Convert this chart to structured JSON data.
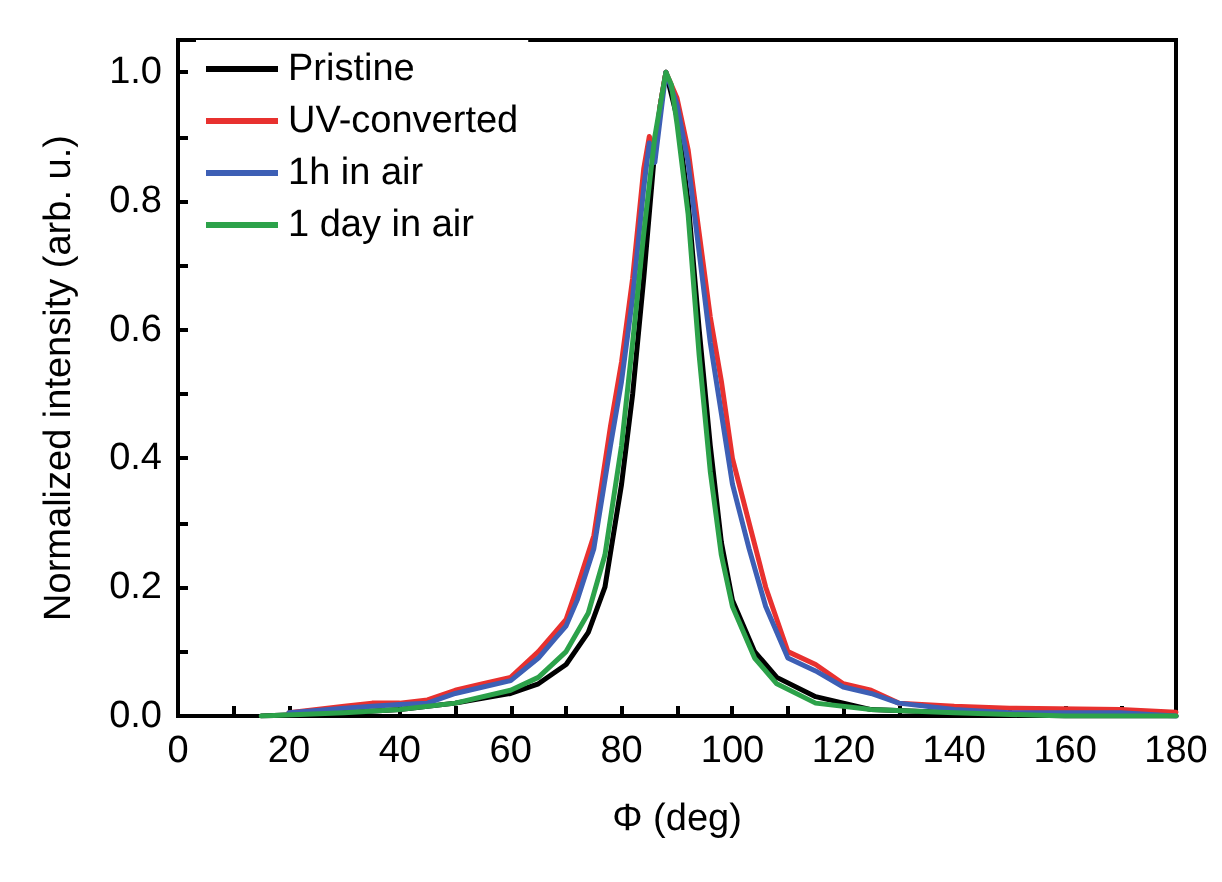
{
  "chart_data": {
    "type": "line",
    "xlabel": "Φ (deg)",
    "ylabel": "Normalized intensity (arb. u.)",
    "xlim": [
      0,
      180
    ],
    "ylim": [
      0,
      1.05
    ],
    "xticks": [
      0,
      {
        "value": 10,
        "label": null
      },
      20,
      {
        "value": 30,
        "label": null
      },
      40,
      {
        "value": 50,
        "label": null
      },
      60,
      {
        "value": 70,
        "label": null
      },
      80,
      {
        "value": 90,
        "label": null
      },
      100,
      {
        "value": 110,
        "label": null
      },
      120,
      {
        "value": 130,
        "label": null
      },
      140,
      {
        "value": 150,
        "label": null
      },
      160,
      {
        "value": 170,
        "label": null
      },
      180
    ],
    "yticks": [
      {
        "value": 0,
        "label": "0.0"
      },
      {
        "value": 0.1,
        "label": null
      },
      {
        "value": 0.2,
        "label": "0.2"
      },
      {
        "value": 0.3,
        "label": null
      },
      {
        "value": 0.4,
        "label": "0.4"
      },
      {
        "value": 0.5,
        "label": null
      },
      {
        "value": 0.6,
        "label": "0.6"
      },
      {
        "value": 0.7,
        "label": null
      },
      {
        "value": 0.8,
        "label": "0.8"
      },
      {
        "value": 0.9,
        "label": null
      },
      {
        "value": 1,
        "label": "1.0"
      }
    ],
    "grid": false,
    "legend": "top left",
    "marker": "none",
    "line_style": "solid",
    "series": [
      {
        "name": "Pristine",
        "color": "#000000",
        "x": [
          15,
          30,
          40,
          50,
          60,
          65,
          70,
          74,
          77,
          80,
          82,
          84,
          86,
          87,
          88,
          90,
          92,
          94,
          96,
          98,
          100,
          104,
          108,
          115,
          125,
          140,
          160,
          180
        ],
        "values": [
          0,
          0.005,
          0.01,
          0.02,
          0.035,
          0.05,
          0.08,
          0.13,
          0.2,
          0.36,
          0.5,
          0.68,
          0.88,
          0.95,
          1.0,
          0.93,
          0.8,
          0.6,
          0.42,
          0.27,
          0.18,
          0.1,
          0.06,
          0.03,
          0.01,
          0.005,
          0,
          0
        ]
      },
      {
        "name": "UV-converted",
        "color": "#e8312f",
        "x": [
          20,
          30,
          35,
          40,
          45,
          50,
          55,
          60,
          65,
          68,
          70,
          72,
          75,
          78,
          80,
          82,
          84,
          85,
          86,
          87,
          88,
          90,
          92,
          94,
          96,
          98,
          100,
          103,
          106,
          110,
          115,
          120,
          125,
          130,
          140,
          150,
          170,
          180
        ],
        "values": [
          0.005,
          0.015,
          0.02,
          0.02,
          0.025,
          0.04,
          0.05,
          0.06,
          0.1,
          0.13,
          0.15,
          0.2,
          0.28,
          0.45,
          0.55,
          0.68,
          0.85,
          0.9,
          0.88,
          0.95,
          1.0,
          0.96,
          0.88,
          0.75,
          0.62,
          0.52,
          0.4,
          0.3,
          0.2,
          0.1,
          0.08,
          0.05,
          0.04,
          0.02,
          0.015,
          0.012,
          0.01,
          0.006
        ]
      },
      {
        "name": "1h in air",
        "color": "#3d5fb5",
        "x": [
          20,
          30,
          35,
          40,
          45,
          50,
          55,
          60,
          65,
          68,
          70,
          72,
          75,
          78,
          80,
          82,
          84,
          85,
          86,
          87,
          88,
          90,
          92,
          94,
          96,
          98,
          100,
          103,
          106,
          110,
          115,
          120,
          125,
          130,
          140,
          150,
          170,
          180
        ],
        "values": [
          0.005,
          0.012,
          0.015,
          0.018,
          0.02,
          0.035,
          0.045,
          0.055,
          0.09,
          0.12,
          0.14,
          0.18,
          0.26,
          0.42,
          0.52,
          0.65,
          0.82,
          0.89,
          0.86,
          0.93,
          1.0,
          0.95,
          0.86,
          0.72,
          0.58,
          0.47,
          0.36,
          0.26,
          0.17,
          0.09,
          0.07,
          0.045,
          0.035,
          0.02,
          0.01,
          0.005,
          0.005,
          0
        ]
      },
      {
        "name": "1 day in air",
        "color": "#2ca24a",
        "x": [
          15,
          30,
          40,
          50,
          60,
          65,
          70,
          74,
          77,
          80,
          82,
          84,
          86,
          88,
          89,
          90,
          92,
          94,
          96,
          98,
          100,
          104,
          108,
          115,
          125,
          140,
          160,
          180
        ],
        "values": [
          0,
          0.005,
          0.01,
          0.02,
          0.04,
          0.06,
          0.1,
          0.16,
          0.25,
          0.42,
          0.58,
          0.75,
          0.9,
          1.0,
          0.98,
          0.92,
          0.78,
          0.56,
          0.38,
          0.25,
          0.17,
          0.09,
          0.05,
          0.02,
          0.01,
          0.005,
          0,
          0
        ]
      }
    ]
  }
}
